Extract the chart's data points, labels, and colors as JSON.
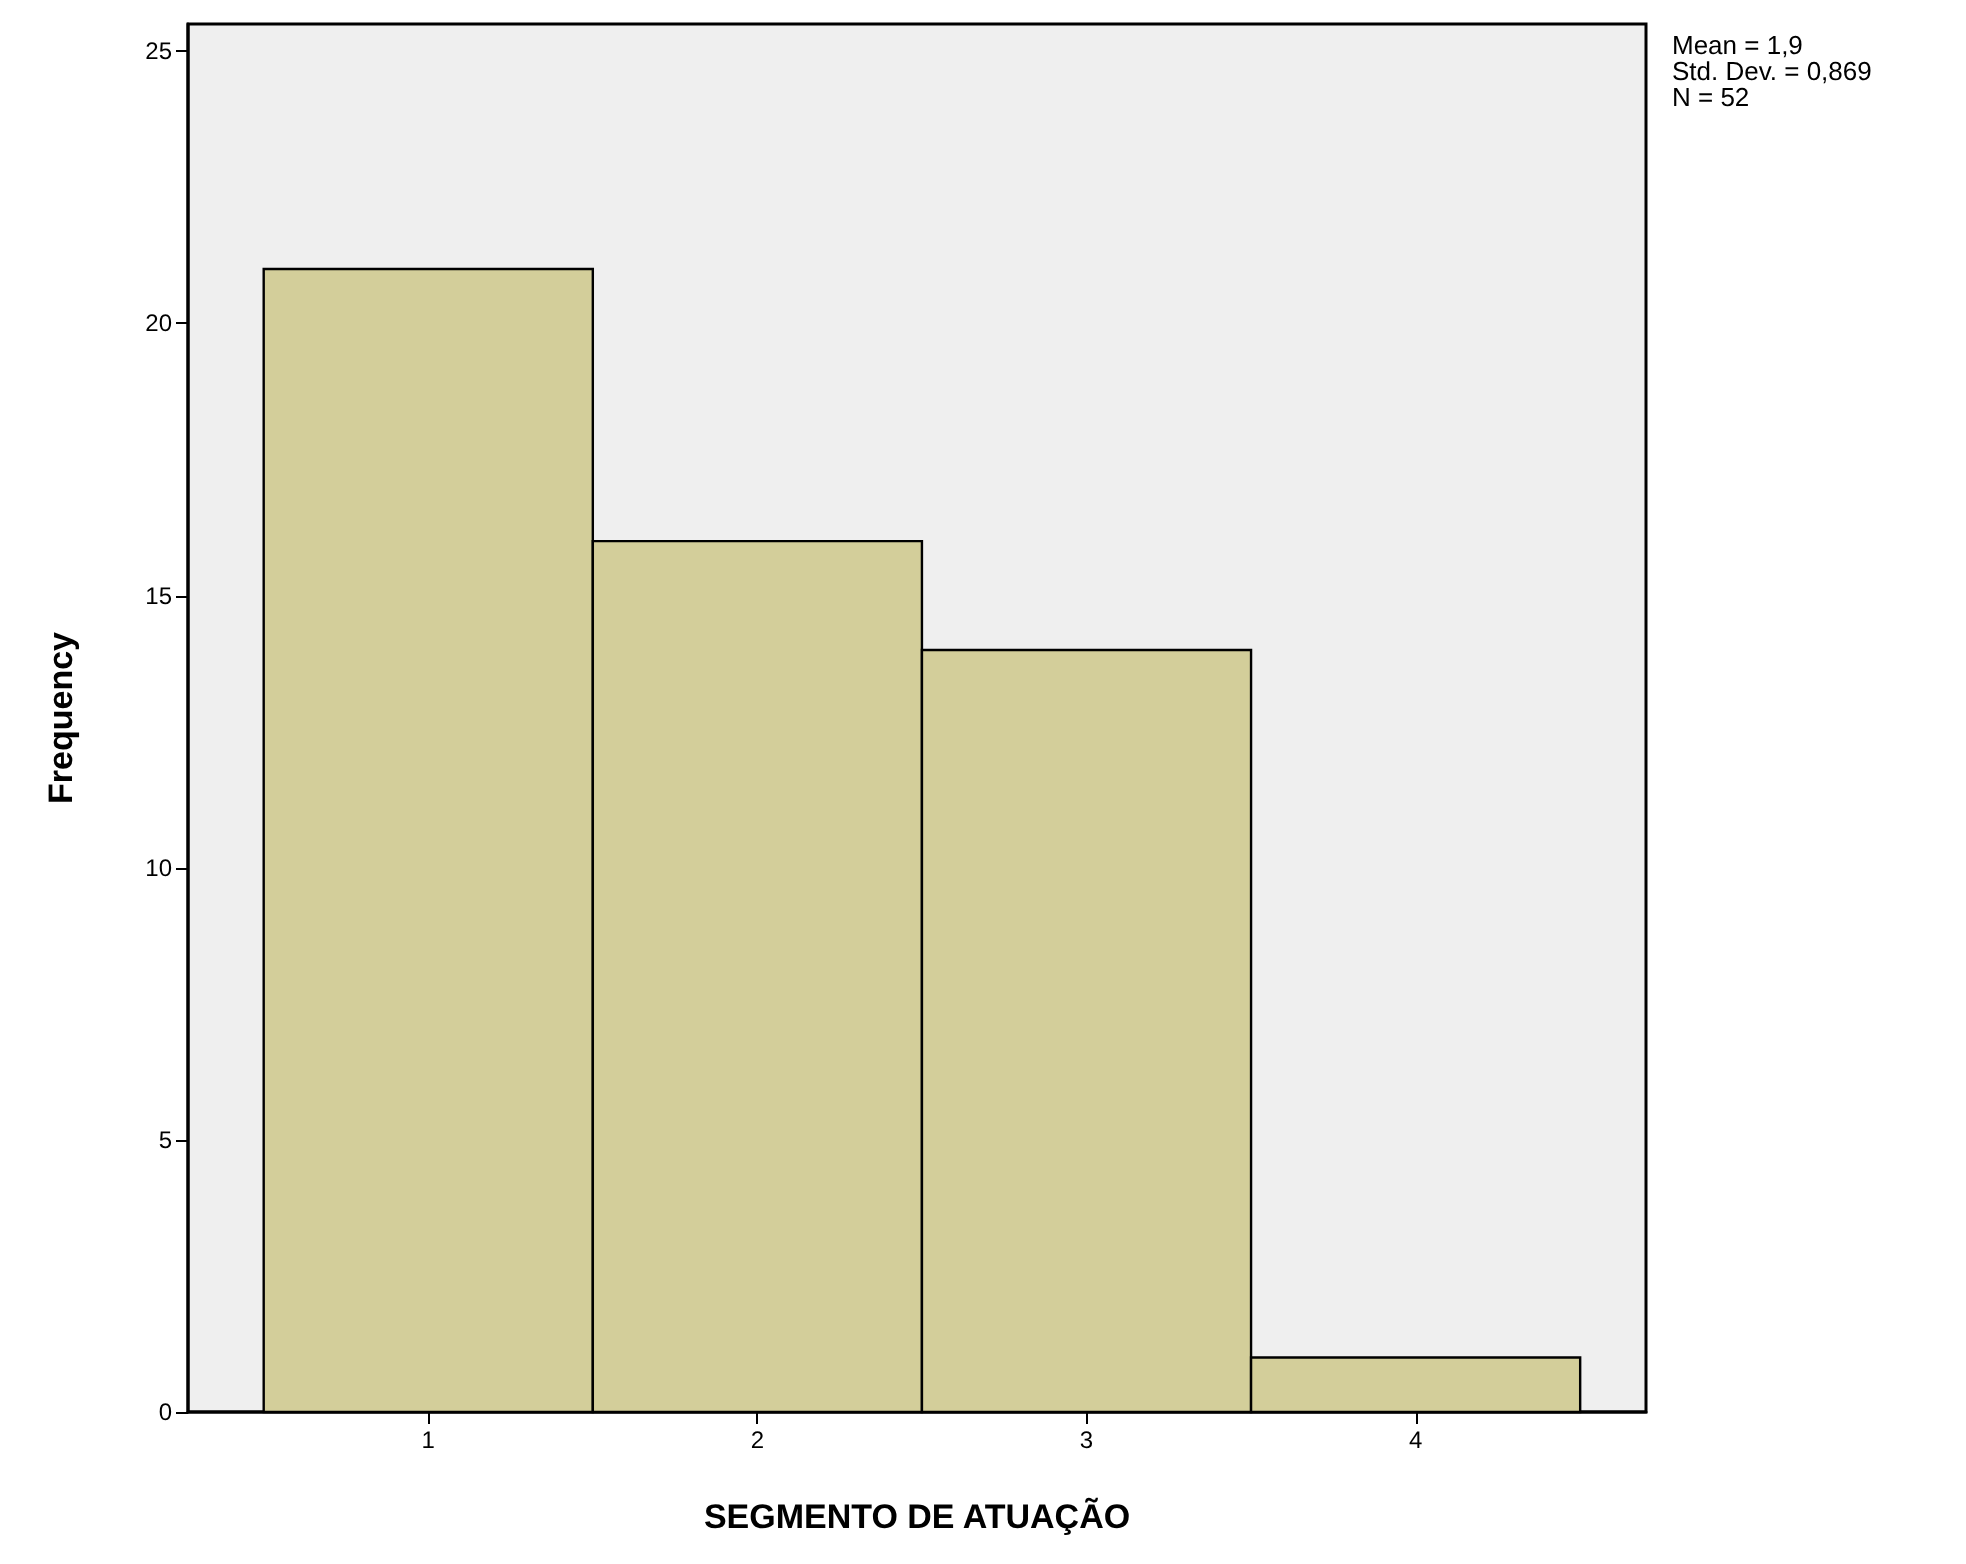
{
  "chart_data": {
    "type": "histogram",
    "xlabel": "SEGMENTO DE ATUAÇÃO",
    "ylabel": "Frequency",
    "bins": [
      0.5,
      1.5,
      2.5,
      3.5,
      4.5
    ],
    "values": [
      21,
      16,
      14,
      1
    ],
    "color": "#d3ce9a",
    "xlim": [
      0.27,
      4.7
    ],
    "xticks": [
      1,
      2,
      3,
      4
    ],
    "ylim": [
      0,
      25.5
    ],
    "yticks": [
      0,
      5,
      10,
      15,
      20,
      25
    ],
    "grid": false,
    "annotations": [
      "Mean = 1,9",
      "Std. Dev. = 0,869",
      "N = 52"
    ]
  }
}
